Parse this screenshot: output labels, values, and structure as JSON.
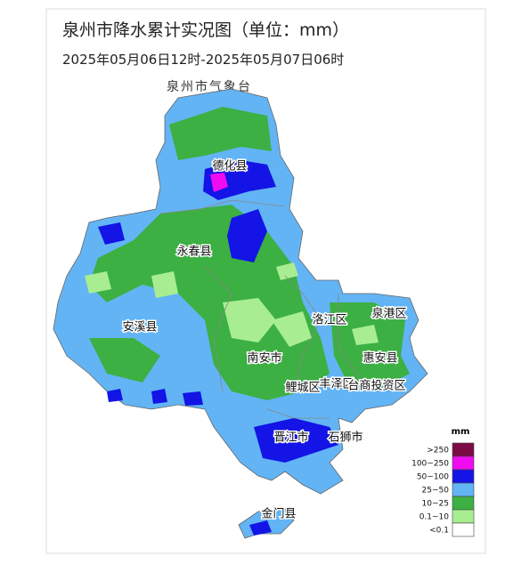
{
  "header": {
    "title": "泉州市降水累计实况图（单位：mm）",
    "subtitle": "2025年05月06日12时-2025年05月07日06时",
    "source": "泉州市气象台"
  },
  "districts": [
    "德化县",
    "永春县",
    "安溪县",
    "南安市",
    "洛江区",
    "泉港区",
    "惠安县",
    "鲤城区",
    "丰泽区",
    "台商投资区",
    "晋江市",
    "石狮市",
    "金门县"
  ],
  "legend": {
    "unit": "mm",
    "items": [
      {
        "label": ">250",
        "color": "#7b0b45"
      },
      {
        "label": "100~250",
        "color": "#f00cf0"
      },
      {
        "label": "50~100",
        "color": "#1414e6"
      },
      {
        "label": "25~50",
        "color": "#62b4f5"
      },
      {
        "label": "10~25",
        "color": "#3cb043"
      },
      {
        "label": "0.1~10",
        "color": "#a8ee90"
      },
      {
        "label": "<0.1",
        "color": "#ffffff"
      }
    ]
  }
}
